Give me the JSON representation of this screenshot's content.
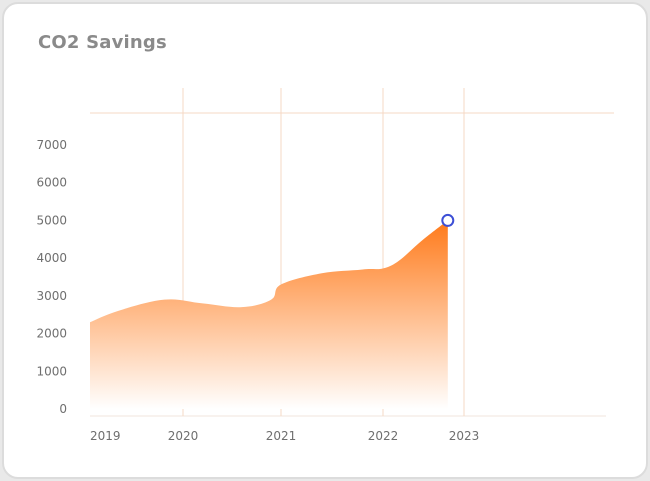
{
  "title": "CO2 Savings",
  "colors": {
    "area_top": "#ff7a1a",
    "area_bottom": "#ffffff",
    "gridline": "#f6d9c4",
    "marker_stroke": "#3d4fd6",
    "axis_text": "#6f6f6f",
    "title_text": "#8a8a8a"
  },
  "chart_data": {
    "type": "area",
    "title": "CO2 Savings",
    "xlabel": "",
    "ylabel": "",
    "x_tick_labels": [
      "2019",
      "2020",
      "2021",
      "2022",
      "2023"
    ],
    "y_tick_labels": [
      "0",
      "1000",
      "2000",
      "3000",
      "4000",
      "5000",
      "6000",
      "7000"
    ],
    "ylim": [
      0,
      8000
    ],
    "xlim": [
      2019,
      2024.5
    ],
    "grid": "vertical lines at years",
    "legend": "none",
    "series": [
      {
        "x": [
          2019,
          2019.3,
          2019.8,
          2020.2,
          2020.6,
          2020.9,
          2021.0,
          2021.4,
          2021.8,
          2022.1,
          2022.5,
          2022.8
        ],
        "values": [
          2300,
          2600,
          2900,
          2800,
          2700,
          2900,
          3300,
          3600,
          3700,
          3800,
          4500,
          5000
        ]
      }
    ],
    "highlight_point": {
      "x": 2022.8,
      "y": 5000
    }
  }
}
